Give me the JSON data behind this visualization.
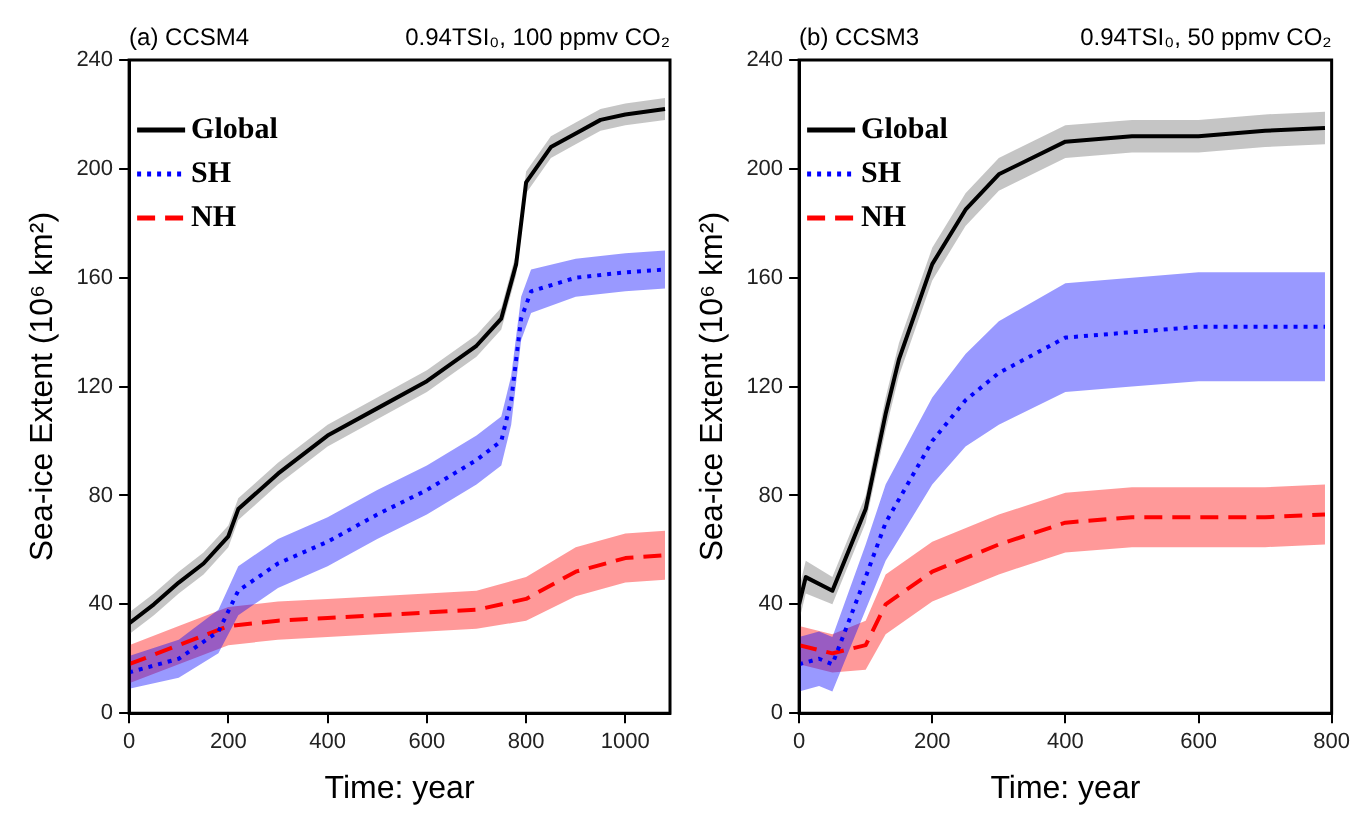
{
  "chart_data": [
    {
      "type": "line",
      "title": "(a) CCSM4",
      "subtitle": "0.94TSI₀, 100 ppmv CO₂",
      "xlabel": "Time: year",
      "ylabel": "Sea-ice Extent (10⁶ km²)",
      "xlim": [
        0,
        1090
      ],
      "xticks": [
        0,
        200,
        400,
        600,
        800,
        1000
      ],
      "ylim": [
        0,
        240
      ],
      "yticks": [
        0,
        40,
        80,
        120,
        160,
        200,
        240
      ],
      "grid": false,
      "legend": "top left",
      "series": [
        {
          "name": "Global",
          "color": "#000000",
          "line_style": "solid",
          "x": [
            0,
            50,
            100,
            150,
            200,
            220,
            300,
            400,
            500,
            600,
            700,
            750,
            780,
            800,
            850,
            900,
            950,
            1000,
            1080
          ],
          "values": [
            33,
            40,
            48,
            55,
            65,
            75,
            88,
            102,
            112,
            122,
            135,
            145,
            165,
            195,
            208,
            213,
            218,
            220,
            222
          ],
          "lower": [
            29,
            36,
            44,
            51,
            61,
            71,
            84,
            98,
            108,
            118,
            131,
            141,
            161,
            191,
            204,
            209,
            214,
            216,
            218
          ],
          "upper": [
            37,
            44,
            52,
            59,
            69,
            79,
            92,
            106,
            116,
            126,
            139,
            149,
            169,
            199,
            212,
            217,
            222,
            224,
            226
          ]
        },
        {
          "name": "SH",
          "color": "#0000ff",
          "line_style": "dotted",
          "x": [
            0,
            100,
            180,
            220,
            300,
            400,
            500,
            600,
            700,
            750,
            770,
            790,
            810,
            900,
            1000,
            1080
          ],
          "values": [
            15,
            20,
            30,
            45,
            55,
            63,
            73,
            82,
            93,
            100,
            115,
            145,
            155,
            160,
            162,
            163
          ],
          "lower": [
            9,
            13,
            22,
            36,
            46,
            54,
            64,
            73,
            84,
            91,
            106,
            137,
            147,
            153,
            155,
            156
          ],
          "upper": [
            21,
            27,
            38,
            54,
            64,
            72,
            82,
            91,
            102,
            109,
            124,
            153,
            163,
            167,
            169,
            170
          ]
        },
        {
          "name": "NH",
          "color": "#ff0000",
          "line_style": "dashed",
          "x": [
            0,
            100,
            200,
            300,
            400,
            500,
            600,
            700,
            800,
            900,
            1000,
            1080
          ],
          "values": [
            18,
            25,
            32,
            34,
            35,
            36,
            37,
            38,
            42,
            52,
            57,
            58
          ],
          "lower": [
            11,
            18,
            25,
            27,
            28,
            29,
            30,
            31,
            34,
            43,
            48,
            49
          ],
          "upper": [
            25,
            32,
            39,
            41,
            42,
            43,
            44,
            45,
            50,
            61,
            66,
            67
          ]
        }
      ]
    },
    {
      "type": "line",
      "title": "(b) CCSM3",
      "subtitle": "0.94TSI₀, 50 ppmv CO₂",
      "xlabel": "Time: year",
      "ylabel": "Sea-ice Extent (10⁶ km²)",
      "xlim": [
        0,
        800
      ],
      "xticks": [
        0,
        200,
        400,
        600,
        800
      ],
      "ylim": [
        0,
        240
      ],
      "yticks": [
        0,
        40,
        80,
        120,
        160,
        200,
        240
      ],
      "grid": false,
      "legend": "top left",
      "series": [
        {
          "name": "Global",
          "color": "#000000",
          "line_style": "solid",
          "x": [
            0,
            10,
            50,
            100,
            130,
            150,
            200,
            250,
            300,
            400,
            500,
            600,
            700,
            790
          ],
          "values": [
            40,
            50,
            45,
            75,
            110,
            130,
            165,
            185,
            198,
            210,
            212,
            212,
            214,
            215
          ],
          "lower": [
            34,
            44,
            40,
            70,
            104,
            124,
            159,
            179,
            192,
            204,
            206,
            206,
            208,
            209
          ],
          "upper": [
            46,
            56,
            50,
            80,
            116,
            136,
            171,
            191,
            204,
            216,
            218,
            218,
            220,
            221
          ]
        },
        {
          "name": "SH",
          "color": "#0000ff",
          "line_style": "dotted",
          "x": [
            0,
            30,
            50,
            100,
            130,
            200,
            250,
            300,
            400,
            500,
            600,
            700,
            790
          ],
          "values": [
            18,
            20,
            18,
            50,
            70,
            100,
            115,
            125,
            138,
            140,
            142,
            142,
            142
          ],
          "lower": [
            8,
            10,
            8,
            38,
            56,
            84,
            98,
            106,
            118,
            120,
            122,
            122,
            122
          ],
          "upper": [
            28,
            30,
            28,
            62,
            84,
            116,
            132,
            144,
            158,
            160,
            162,
            162,
            162
          ]
        },
        {
          "name": "NH",
          "color": "#ff0000",
          "line_style": "dashed",
          "x": [
            0,
            50,
            100,
            130,
            200,
            300,
            400,
            500,
            600,
            700,
            790
          ],
          "values": [
            25,
            22,
            25,
            40,
            52,
            62,
            70,
            72,
            72,
            72,
            73
          ],
          "lower": [
            18,
            15,
            16,
            29,
            41,
            51,
            59,
            61,
            61,
            61,
            62
          ],
          "upper": [
            32,
            29,
            34,
            51,
            63,
            73,
            81,
            83,
            83,
            83,
            84
          ]
        }
      ]
    }
  ]
}
